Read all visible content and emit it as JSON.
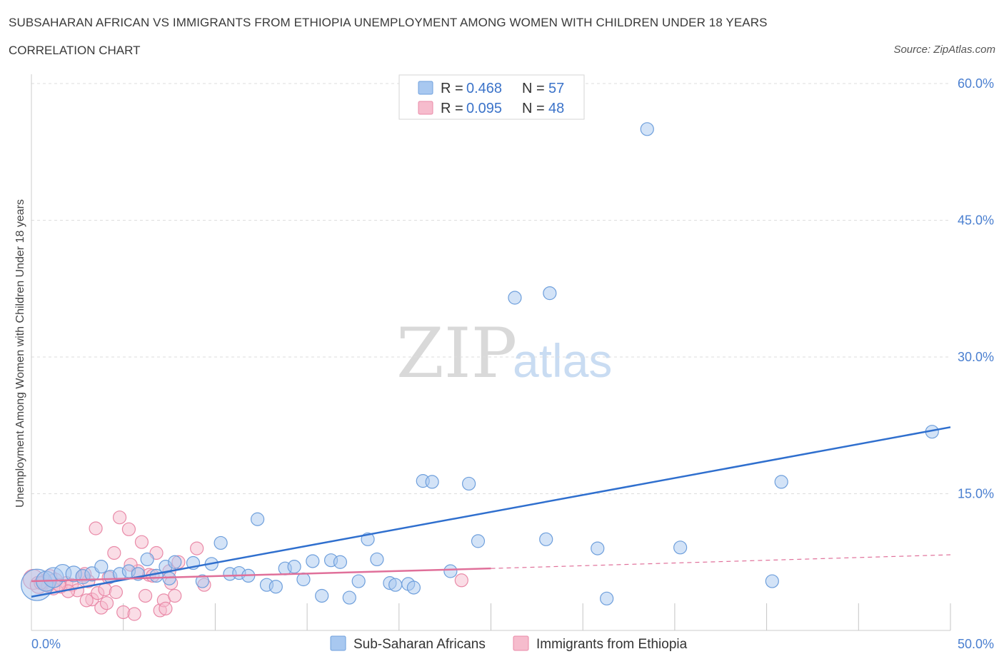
{
  "header": {
    "title": "SUBSAHARAN AFRICAN VS IMMIGRANTS FROM ETHIOPIA UNEMPLOYMENT AMONG WOMEN WITH CHILDREN UNDER 18 YEARS",
    "subtitle": "CORRELATION CHART",
    "source": "Source: ZipAtlas.com"
  },
  "watermark": {
    "zip": "ZIP",
    "atlas": "atlas"
  },
  "colors": {
    "blue_fill": "#a8c8f0",
    "blue_stroke": "#6e9fdc",
    "blue_line": "#2f6fce",
    "pink_fill": "#f6bccd",
    "pink_stroke": "#e98aa8",
    "pink_line": "#e0709a",
    "grid": "#dddddd",
    "tick_text": "#4a7fd0"
  },
  "legend": {
    "rows": [
      {
        "r_label": "R = ",
        "r_value": "0.468",
        "n_label": "N = ",
        "n_value": "57"
      },
      {
        "r_label": "R = ",
        "r_value": "0.095",
        "n_label": "N = ",
        "n_value": "48"
      }
    ]
  },
  "chart_data": {
    "type": "scatter",
    "title": "SUBSAHARAN AFRICAN VS IMMIGRANTS FROM ETHIOPIA UNEMPLOYMENT AMONG WOMEN WITH CHILDREN UNDER 18 YEARS",
    "xlabel": "",
    "ylabel": "Unemployment Among Women with Children Under 18 years",
    "xlim": [
      0,
      50
    ],
    "ylim": [
      0,
      60
    ],
    "x_tick_labels": [
      "0.0%",
      "50.0%"
    ],
    "y_ticks": [
      15,
      30,
      45,
      60
    ],
    "y_tick_labels": [
      "15.0%",
      "30.0%",
      "45.0%",
      "60.0%"
    ],
    "grid": true,
    "legend_position": "bottom-center",
    "series": [
      {
        "name": "Sub-Saharan Africans",
        "color": "#a8c8f0",
        "trend": {
          "x0": 0,
          "y0": 3.7,
          "x1": 50,
          "y1": 22.3,
          "dashed_from": null
        },
        "points": [
          [
            0.3,
            5.0,
            22
          ],
          [
            0.8,
            5.4,
            14
          ],
          [
            1.2,
            5.8,
            14
          ],
          [
            1.7,
            6.3,
            12
          ],
          [
            2.3,
            6.2,
            11
          ],
          [
            2.8,
            5.9,
            10
          ],
          [
            3.3,
            6.2,
            10
          ],
          [
            3.8,
            7.0,
            9
          ],
          [
            4.3,
            5.9,
            9
          ],
          [
            4.8,
            6.2,
            9
          ],
          [
            5.3,
            6.5,
            9
          ],
          [
            5.8,
            6.2,
            9
          ],
          [
            6.3,
            7.8,
            9
          ],
          [
            6.8,
            6.0,
            9
          ],
          [
            7.3,
            7.0,
            9
          ],
          [
            7.5,
            5.7,
            9
          ],
          [
            7.8,
            7.5,
            9
          ],
          [
            8.8,
            7.4,
            9
          ],
          [
            9.8,
            7.3,
            9
          ],
          [
            9.3,
            5.4,
            9
          ],
          [
            10.3,
            9.6,
            9
          ],
          [
            10.8,
            6.2,
            9
          ],
          [
            11.3,
            6.3,
            9
          ],
          [
            11.8,
            6.0,
            9
          ],
          [
            12.3,
            12.2,
            9
          ],
          [
            12.8,
            5.0,
            9
          ],
          [
            13.3,
            4.8,
            9
          ],
          [
            13.8,
            6.8,
            9
          ],
          [
            14.3,
            7.0,
            9
          ],
          [
            14.8,
            5.6,
            9
          ],
          [
            15.3,
            7.6,
            9
          ],
          [
            15.8,
            3.8,
            9
          ],
          [
            16.3,
            7.7,
            9
          ],
          [
            16.8,
            7.5,
            9
          ],
          [
            17.3,
            3.6,
            9
          ],
          [
            17.8,
            5.4,
            9
          ],
          [
            18.8,
            7.8,
            9
          ],
          [
            18.3,
            10.0,
            9
          ],
          [
            19.5,
            5.2,
            9
          ],
          [
            19.8,
            5.0,
            9
          ],
          [
            20.5,
            5.1,
            9
          ],
          [
            20.8,
            4.7,
            9
          ],
          [
            21.3,
            16.4,
            9
          ],
          [
            21.8,
            16.3,
            9
          ],
          [
            22.8,
            6.5,
            9
          ],
          [
            23.8,
            16.1,
            9
          ],
          [
            24.3,
            9.8,
            9
          ],
          [
            26.3,
            36.5,
            9
          ],
          [
            28.0,
            10.0,
            9
          ],
          [
            28.2,
            37.0,
            9
          ],
          [
            30.8,
            9.0,
            9
          ],
          [
            31.3,
            3.5,
            9
          ],
          [
            33.5,
            55.0,
            9
          ],
          [
            35.3,
            9.1,
            9
          ],
          [
            40.3,
            5.4,
            9
          ],
          [
            40.8,
            16.3,
            9
          ],
          [
            49.0,
            21.8,
            9
          ]
        ]
      },
      {
        "name": "Immigrants from Ethiopia",
        "color": "#f6bccd",
        "trend": {
          "x0": 0,
          "y0": 5.4,
          "x1": 25,
          "y1": 6.8,
          "dashed_from": 25,
          "dashed_to": 50,
          "dashed_y1": 8.3
        },
        "points": [
          [
            0.1,
            5.6,
            14
          ],
          [
            0.4,
            5.0,
            12
          ],
          [
            0.7,
            5.3,
            10
          ],
          [
            1.0,
            5.9,
            10
          ],
          [
            1.3,
            5.5,
            10
          ],
          [
            1.6,
            4.8,
            9
          ],
          [
            1.9,
            5.2,
            9
          ],
          [
            2.2,
            5.0,
            9
          ],
          [
            2.5,
            4.4,
            9
          ],
          [
            2.8,
            6.0,
            9
          ],
          [
            3.1,
            5.4,
            9
          ],
          [
            3.3,
            3.4,
            9
          ],
          [
            3.6,
            4.1,
            9
          ],
          [
            3.5,
            11.2,
            9
          ],
          [
            3.8,
            2.5,
            9
          ],
          [
            4.0,
            4.5,
            9
          ],
          [
            4.2,
            5.8,
            9
          ],
          [
            4.5,
            8.5,
            9
          ],
          [
            4.6,
            4.2,
            9
          ],
          [
            4.8,
            12.4,
            9
          ],
          [
            5.0,
            2.0,
            9
          ],
          [
            5.3,
            11.1,
            9
          ],
          [
            5.6,
            1.8,
            9
          ],
          [
            5.8,
            6.5,
            9
          ],
          [
            6.0,
            9.7,
            9
          ],
          [
            6.2,
            3.8,
            9
          ],
          [
            6.4,
            6.1,
            9
          ],
          [
            6.6,
            6.0,
            9
          ],
          [
            6.8,
            8.5,
            9
          ],
          [
            7.0,
            2.2,
            9
          ],
          [
            7.2,
            3.3,
            9
          ],
          [
            7.3,
            2.4,
            9
          ],
          [
            7.5,
            6.5,
            9
          ],
          [
            7.6,
            5.2,
            9
          ],
          [
            7.8,
            3.8,
            9
          ],
          [
            8.0,
            7.5,
            9
          ],
          [
            9.0,
            9.0,
            9
          ],
          [
            9.4,
            5.0,
            9
          ],
          [
            2.0,
            4.3,
            9
          ],
          [
            1.2,
            4.6,
            9
          ],
          [
            2.9,
            6.2,
            9
          ],
          [
            3.0,
            3.3,
            9
          ],
          [
            1.5,
            5.0,
            9
          ],
          [
            0.9,
            4.9,
            9
          ],
          [
            4.1,
            3.0,
            9
          ],
          [
            5.4,
            7.2,
            9
          ],
          [
            23.4,
            5.5,
            9
          ],
          [
            0.5,
            5.2,
            9
          ]
        ]
      }
    ]
  }
}
